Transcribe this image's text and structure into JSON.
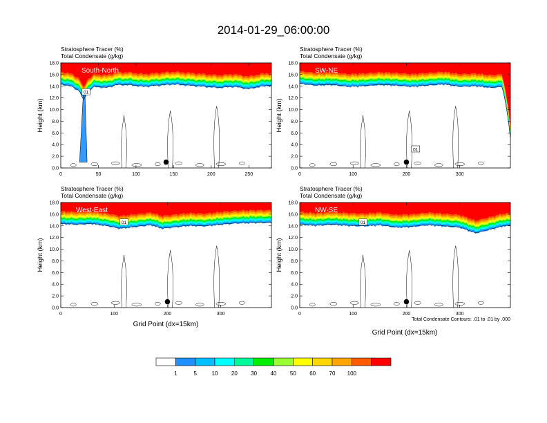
{
  "title": "2014-01-29_06:00:00",
  "panel_header_line1": "Stratosphere Tracer   (%)",
  "panel_header_line2": "Total Condensate   (g/kg)",
  "ylabel": "Height (km)",
  "xlabel": "Grid Point (dx=15km)",
  "contour_info": "Total Condensate Contours: .01 to .01 by .000",
  "colorbar": {
    "labels": [
      "1",
      "5",
      "10",
      "20",
      "30",
      "40",
      "50",
      "60",
      "70",
      "100"
    ],
    "colors": [
      "#ffffff",
      "#1e90ff",
      "#00bfff",
      "#00ffff",
      "#00fa9a",
      "#00ee00",
      "#9aff32",
      "#ffff00",
      "#ffd700",
      "#ffa500",
      "#ff5a00",
      "#ff0000"
    ]
  },
  "chart_data": [
    {
      "type": "heatmap",
      "transect_label": "South-North",
      "ylim": [
        0,
        18
      ],
      "xlim": [
        0,
        280
      ],
      "xticks": [
        "0",
        "50",
        "100",
        "150",
        "200",
        "250"
      ],
      "yticks": [
        "0.0",
        "2.0",
        "4.0",
        "6.0",
        "8.0",
        "10.0",
        "12.0",
        "14.0",
        "16.0",
        "18.0"
      ],
      "contour_label": "01",
      "marker_x": 140,
      "marker_y": 1.0,
      "profile_x": [
        0,
        15,
        25,
        30,
        35,
        45,
        60,
        75,
        90,
        110,
        130,
        150,
        170,
        190,
        210,
        230,
        250,
        265,
        280
      ],
      "profile_top": [
        15.4,
        15.0,
        14.2,
        12.6,
        14.0,
        15.0,
        14.8,
        15.3,
        15.3,
        15.0,
        15.2,
        15.4,
        15.2,
        15.0,
        14.8,
        15.0,
        14.6,
        15.0,
        15.2
      ],
      "condensate_x": [
        25,
        30,
        32,
        35
      ],
      "condensate_top": [
        1.0,
        12.8,
        13.0,
        1.0
      ]
    },
    {
      "type": "heatmap",
      "transect_label": "SW-NE",
      "ylim": [
        0,
        18
      ],
      "xlim": [
        0,
        395
      ],
      "xticks": [
        "0",
        "100",
        "200",
        "300"
      ],
      "yticks": [
        "0.0",
        "2.0",
        "4.0",
        "6.0",
        "8.0",
        "10.0",
        "12.0",
        "14.0",
        "16.0",
        "18.0"
      ],
      "contour_label": "01",
      "marker_x": 200,
      "marker_y": 1.0,
      "profile_x": [
        0,
        30,
        60,
        90,
        120,
        150,
        180,
        210,
        240,
        270,
        300,
        330,
        360,
        380,
        390,
        395
      ],
      "profile_top": [
        15.5,
        15.2,
        15.3,
        15.0,
        15.1,
        15.3,
        15.2,
        15.0,
        15.2,
        15.4,
        15.0,
        15.1,
        14.8,
        15.0,
        10.0,
        6.0
      ],
      "condensate_x": [],
      "condensate_top": []
    },
    {
      "type": "heatmap",
      "transect_label": "West-East",
      "ylim": [
        0,
        18
      ],
      "xlim": [
        0,
        395
      ],
      "xticks": [
        "0",
        "100",
        "200",
        "300"
      ],
      "yticks": [
        "0.0",
        "2.0",
        "4.0",
        "6.0",
        "8.0",
        "10.0",
        "12.0",
        "14.0",
        "16.0",
        "18.0"
      ],
      "contour_label": "01",
      "marker_x": 200,
      "marker_y": 1.0,
      "profile_x": [
        0,
        30,
        60,
        90,
        110,
        130,
        150,
        170,
        190,
        210,
        240,
        270,
        300,
        330,
        360,
        395
      ],
      "profile_top": [
        15.4,
        15.3,
        15.4,
        15.0,
        14.6,
        14.8,
        15.0,
        15.2,
        14.6,
        14.8,
        15.1,
        15.0,
        15.3,
        15.5,
        15.6,
        15.6
      ],
      "condensate_x": [],
      "condensate_top": []
    },
    {
      "type": "heatmap",
      "transect_label": "NW-SE",
      "ylim": [
        0,
        18
      ],
      "xlim": [
        0,
        395
      ],
      "xticks": [
        "0",
        "100",
        "200",
        "300"
      ],
      "yticks": [
        "0.0",
        "2.0",
        "4.0",
        "6.0",
        "8.0",
        "10.0",
        "12.0",
        "14.0",
        "16.0",
        "18.0"
      ],
      "contour_label": "01",
      "marker_x": 200,
      "marker_y": 1.0,
      "profile_x": [
        0,
        30,
        60,
        90,
        120,
        150,
        180,
        210,
        240,
        270,
        300,
        330,
        360,
        380,
        395
      ],
      "profile_top": [
        15.3,
        15.1,
        15.3,
        15.1,
        15.0,
        15.2,
        14.8,
        14.9,
        15.2,
        15.0,
        14.8,
        13.8,
        14.5,
        15.0,
        15.1
      ],
      "condensate_x": [],
      "condensate_top": []
    }
  ]
}
